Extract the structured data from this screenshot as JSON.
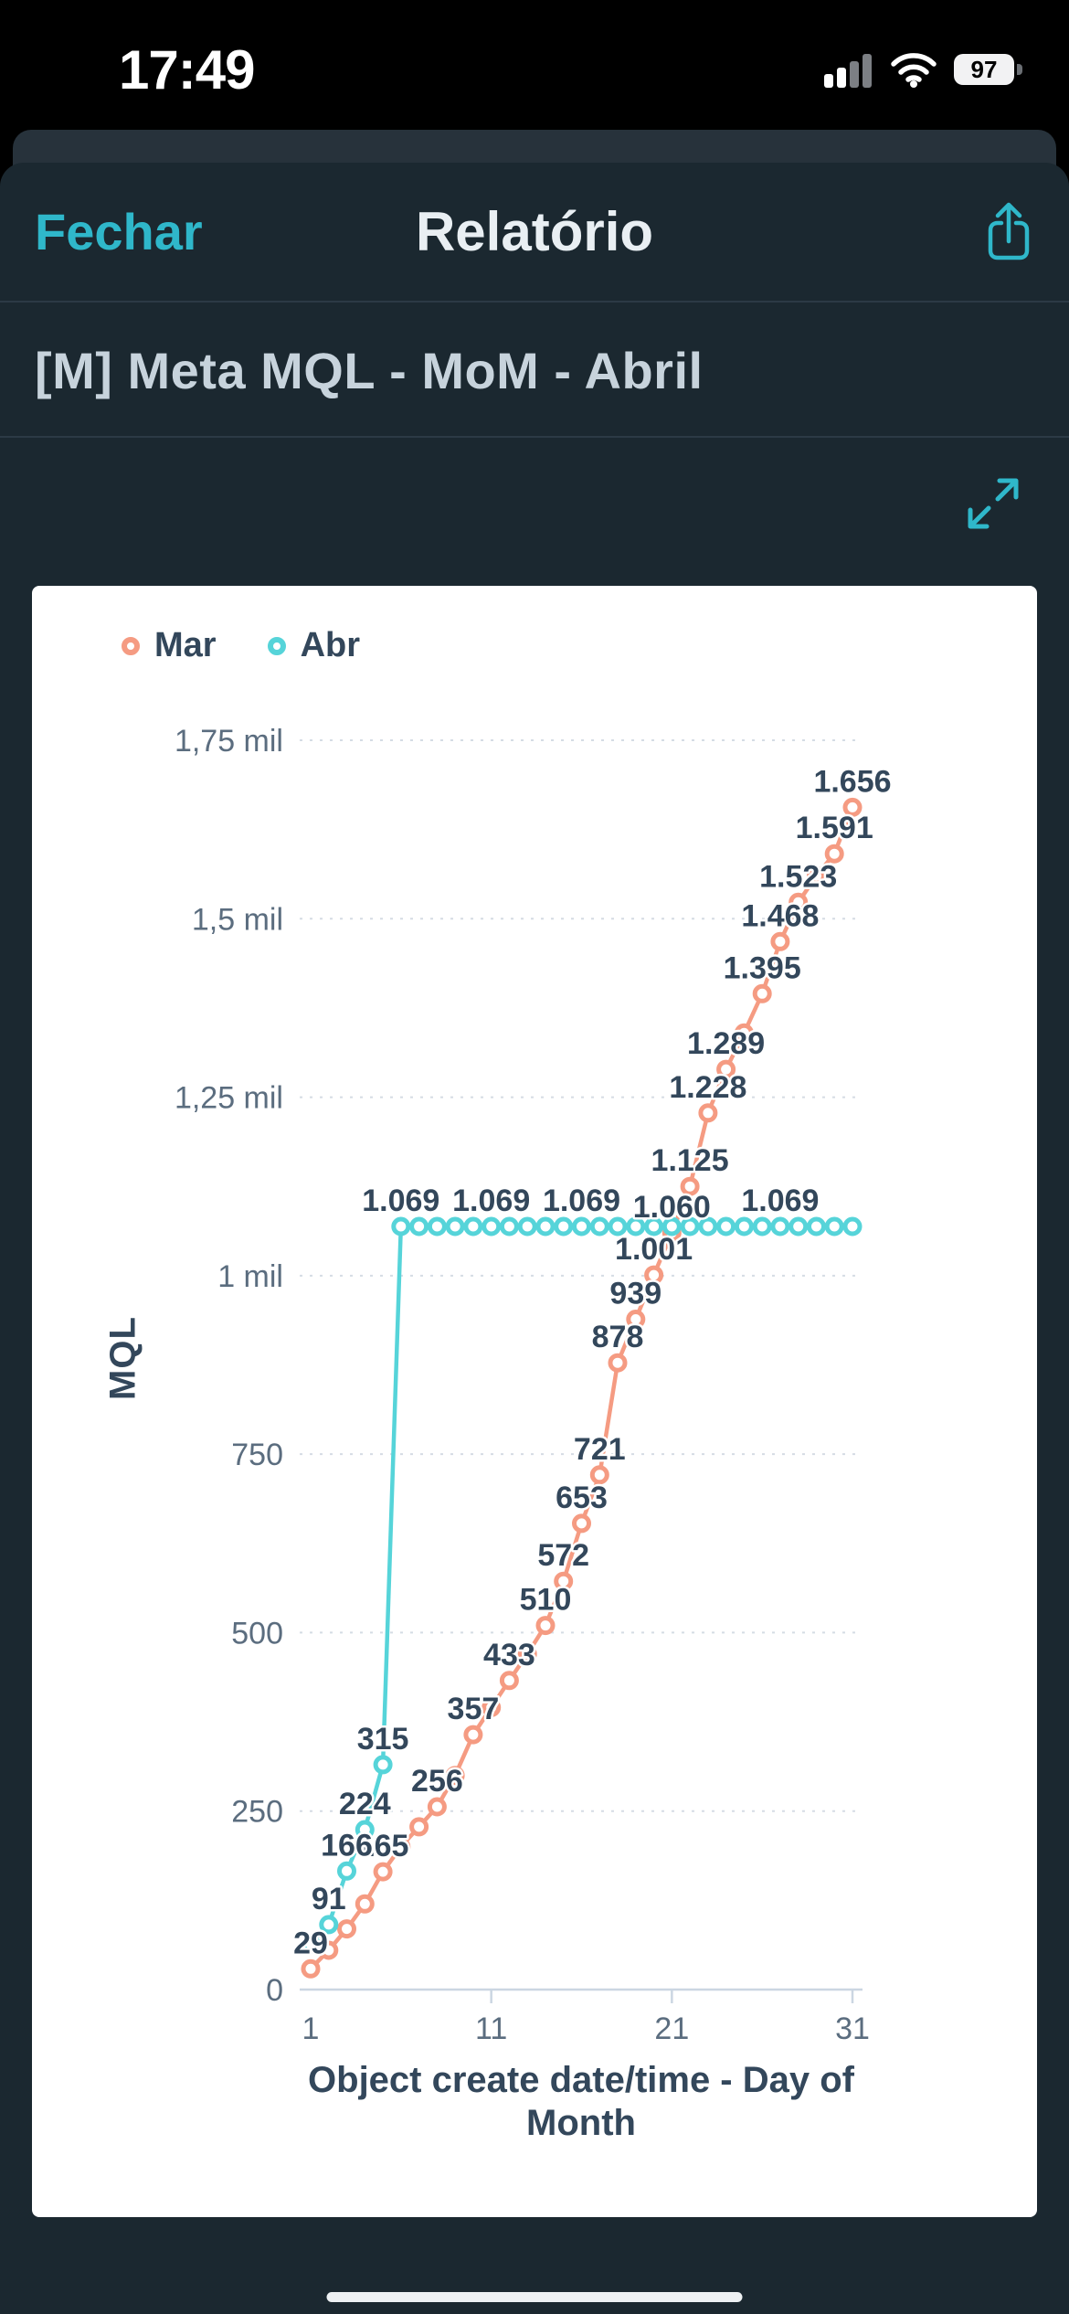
{
  "status_bar": {
    "time": "17:49",
    "battery": "97"
  },
  "nav": {
    "close_label": "Fechar",
    "title": "Relatório"
  },
  "report": {
    "title": "[M] Meta MQL - MoM - Abril"
  },
  "colors": {
    "accent_teal": "#2fb7ca",
    "series_mar": "#f59b82",
    "series_abr": "#56d4d9",
    "data_label": "#33475b",
    "axis_text": "#5b6d7f",
    "sheet_background": "#1b2830",
    "card_background": "#ffffff"
  },
  "chart_data": {
    "type": "line",
    "title": "",
    "xlabel": "Object create date/time - Day of\nMonth",
    "ylabel": "MQL",
    "xlim": [
      1,
      31
    ],
    "ylim": [
      0,
      1750
    ],
    "grid": "dashed-horizontal",
    "legend_position": "top-left",
    "x": [
      1,
      2,
      3,
      4,
      5,
      6,
      7,
      8,
      9,
      10,
      11,
      12,
      13,
      14,
      15,
      16,
      17,
      18,
      19,
      20,
      21,
      22,
      23,
      24,
      25,
      26,
      27,
      28,
      29,
      30,
      31
    ],
    "x_ticks": [
      {
        "v": 1,
        "label": "1"
      },
      {
        "v": 11,
        "label": "11"
      },
      {
        "v": 21,
        "label": "21"
      },
      {
        "v": 31,
        "label": "31"
      }
    ],
    "y_ticks": [
      {
        "v": 0,
        "label": "0"
      },
      {
        "v": 250,
        "label": "250"
      },
      {
        "v": 500,
        "label": "500"
      },
      {
        "v": 750,
        "label": "750"
      },
      {
        "v": 1000,
        "label": "1 mil"
      },
      {
        "v": 1250,
        "label": "1,25 mil"
      },
      {
        "v": 1500,
        "label": "1,5 mil"
      },
      {
        "v": 1750,
        "label": "1,75 mil"
      }
    ],
    "series": [
      {
        "name": "Mar",
        "color": "#f59b82",
        "values": [
          29,
          55,
          85,
          120,
          165,
          200,
          228,
          256,
          300,
          357,
          395,
          433,
          470,
          510,
          572,
          653,
          721,
          878,
          939,
          1001,
          1060,
          1125,
          1228,
          1289,
          1340,
          1395,
          1468,
          1523,
          1560,
          1591,
          1656
        ],
        "point_labels": {
          "1": "29",
          "5": "165",
          "8": "256",
          "10": "357",
          "12": "433",
          "14": "510",
          "15": "572",
          "16": "653",
          "17": "721",
          "18": "878",
          "19": "939",
          "20": "1.001",
          "21": "1.060",
          "22": "1.125",
          "23": "1.228",
          "24": "1.289",
          "26": "1.395",
          "27": "1.468",
          "28": "1.523",
          "30": "1.591",
          "31": "1.656"
        }
      },
      {
        "name": "Abr",
        "color": "#56d4d9",
        "values": [
          64,
          91,
          166,
          224,
          315,
          1069,
          1069,
          1069,
          1069,
          1069,
          1069,
          1069,
          1069,
          1069,
          1069,
          1069,
          1069,
          1069,
          1069,
          1069,
          1069,
          1069,
          1069,
          1069,
          1069,
          1069,
          1069,
          1069,
          1069,
          1069,
          1069
        ],
        "point_labels": {
          "2": "91",
          "3": "166",
          "4": "224",
          "5": "315",
          "6": "1.069",
          "11": "1.069",
          "16": "1.069",
          "27": "1.069"
        }
      }
    ]
  }
}
